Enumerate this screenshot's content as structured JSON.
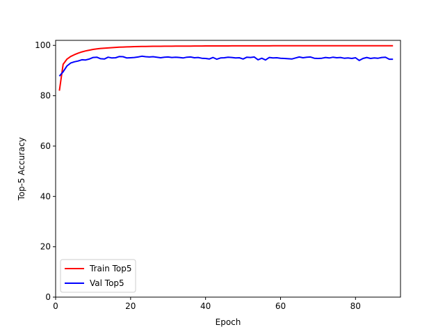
{
  "chart_data": {
    "type": "line",
    "title": "",
    "xlabel": "Epoch",
    "ylabel": "Top-5 Accuracy",
    "xlim": [
      0,
      92
    ],
    "ylim": [
      0,
      102
    ],
    "xticks": [
      0,
      20,
      40,
      60,
      80
    ],
    "yticks": [
      0,
      20,
      40,
      60,
      80,
      100
    ],
    "grid": false,
    "legend": "lower-left",
    "x": [
      1,
      2,
      3,
      4,
      5,
      6,
      7,
      8,
      9,
      10,
      11,
      12,
      13,
      14,
      15,
      16,
      17,
      18,
      19,
      20,
      21,
      22,
      23,
      24,
      25,
      26,
      27,
      28,
      29,
      30,
      31,
      32,
      33,
      34,
      35,
      36,
      37,
      38,
      39,
      40,
      41,
      42,
      43,
      44,
      45,
      46,
      47,
      48,
      49,
      50,
      51,
      52,
      53,
      54,
      55,
      56,
      57,
      58,
      59,
      60,
      61,
      62,
      63,
      64,
      65,
      66,
      67,
      68,
      69,
      70,
      71,
      72,
      73,
      74,
      75,
      76,
      77,
      78,
      79,
      80,
      81,
      82,
      83,
      84,
      85,
      86,
      87,
      88,
      89,
      90
    ],
    "series": [
      {
        "name": "Train Top5",
        "color": "#ff0000",
        "values": [
          82.0,
          92.5,
          94.5,
          95.6,
          96.3,
          96.9,
          97.4,
          97.8,
          98.1,
          98.4,
          98.6,
          98.8,
          98.9,
          99.0,
          99.1,
          99.2,
          99.3,
          99.35,
          99.4,
          99.45,
          99.5,
          99.55,
          99.58,
          99.6,
          99.62,
          99.64,
          99.65,
          99.66,
          99.67,
          99.68,
          99.69,
          99.7,
          99.71,
          99.72,
          99.73,
          99.74,
          99.75,
          99.76,
          99.77,
          99.78,
          99.78,
          99.79,
          99.79,
          99.8,
          99.8,
          99.8,
          99.81,
          99.81,
          99.81,
          99.82,
          99.82,
          99.82,
          99.82,
          99.83,
          99.83,
          99.83,
          99.83,
          99.84,
          99.84,
          99.84,
          99.84,
          99.84,
          99.85,
          99.85,
          99.85,
          99.85,
          99.85,
          99.85,
          99.86,
          99.86,
          99.86,
          99.86,
          99.86,
          99.86,
          99.86,
          99.87,
          99.87,
          99.87,
          99.87,
          99.87,
          99.87,
          99.87,
          99.87,
          99.88,
          99.88,
          99.88,
          99.88,
          99.88,
          99.88,
          99.88
        ]
      },
      {
        "name": "Val Top5",
        "color": "#0000ff",
        "values": [
          87.8,
          89.5,
          91.8,
          93.0,
          93.5,
          93.8,
          94.3,
          94.2,
          94.6,
          95.2,
          95.3,
          94.7,
          94.6,
          95.3,
          95.0,
          95.1,
          95.6,
          95.5,
          95.0,
          95.1,
          95.2,
          95.4,
          95.7,
          95.5,
          95.4,
          95.5,
          95.3,
          95.1,
          95.3,
          95.4,
          95.2,
          95.3,
          95.2,
          95.0,
          95.3,
          95.4,
          95.1,
          95.2,
          94.9,
          94.8,
          94.6,
          95.2,
          94.5,
          95.0,
          95.1,
          95.3,
          95.2,
          95.0,
          95.1,
          94.6,
          95.3,
          95.2,
          95.4,
          94.3,
          94.9,
          94.2,
          95.2,
          95.0,
          95.1,
          94.9,
          94.8,
          94.7,
          94.6,
          95.0,
          95.4,
          95.1,
          95.3,
          95.4,
          94.9,
          94.8,
          94.9,
          95.2,
          95.0,
          95.3,
          95.1,
          95.2,
          94.9,
          95.0,
          94.8,
          95.1,
          94.0,
          94.8,
          95.2,
          94.8,
          95.0,
          94.9,
          95.2,
          95.3,
          94.5,
          94.5
        ]
      }
    ]
  }
}
